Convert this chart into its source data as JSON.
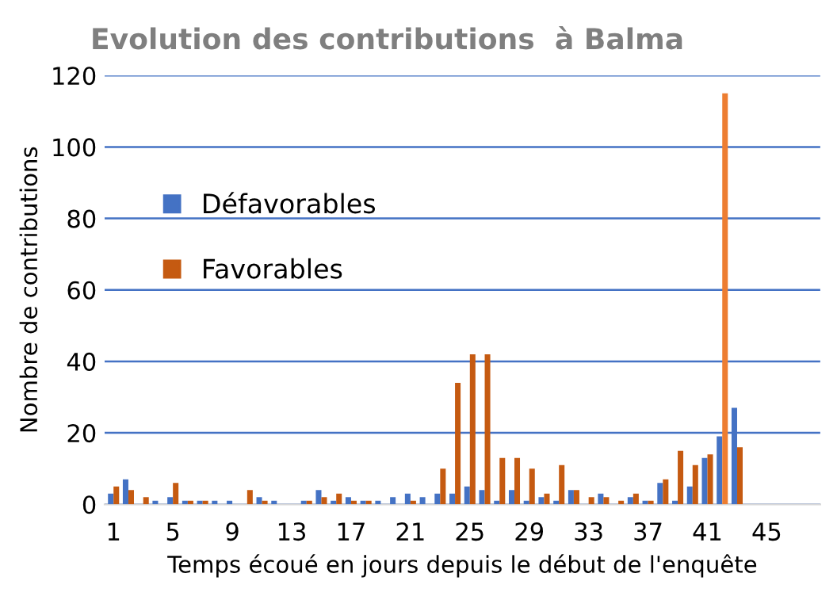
{
  "chart_data": {
    "type": "bar",
    "title": "Evolution des contributions  à Balma",
    "xlabel": "Temps écoué en jours depuis le début de l'enquête",
    "ylabel": "Nombre de contributions",
    "categories": [
      "1",
      null,
      null,
      null,
      "5",
      null,
      null,
      null,
      "9",
      null,
      null,
      null,
      "13",
      null,
      null,
      null,
      "17",
      null,
      null,
      null,
      "21",
      null,
      null,
      null,
      "25",
      null,
      null,
      null,
      "29",
      null,
      null,
      null,
      "33",
      null,
      null,
      null,
      "37",
      null,
      null,
      null,
      "41",
      null,
      null,
      null,
      "45",
      null,
      null,
      null
    ],
    "series": [
      {
        "name": "Défavorables",
        "color": "#4472c4",
        "values": [
          3,
          7,
          0,
          1,
          2,
          1,
          1,
          1,
          1,
          0,
          2,
          1,
          0,
          1,
          4,
          1,
          2,
          1,
          1,
          2,
          3,
          2,
          3,
          3,
          5,
          4,
          1,
          4,
          1,
          2,
          1,
          4,
          0,
          3,
          0,
          2,
          1,
          6,
          1,
          5,
          13,
          19,
          27,
          null,
          null,
          null,
          null,
          null
        ]
      },
      {
        "name": "Favorables",
        "color": "#c55a11",
        "colors": [
          "#c55a11",
          "#c55a11",
          "#c55a11",
          "#c55a11",
          "#c55a11",
          "#c55a11",
          "#c55a11",
          "#c55a11",
          "#c55a11",
          "#c55a11",
          "#c55a11",
          "#c55a11",
          "#c55a11",
          "#c55a11",
          "#c55a11",
          "#c55a11",
          "#c55a11",
          "#c55a11",
          "#c55a11",
          "#c55a11",
          "#c55a11",
          "#c55a11",
          "#c55a11",
          "#c55a11",
          "#c55a11",
          "#c55a11",
          "#c55a11",
          "#c55a11",
          "#c55a11",
          "#c55a11",
          "#c55a11",
          "#c55a11",
          "#c55a11",
          "#c55a11",
          "#c55a11",
          "#c55a11",
          "#c55a11",
          "#c55a11",
          "#c55a11",
          "#c55a11",
          "#c55a11",
          "#ed7d31",
          "#c55a11",
          "#c55a11",
          "#c55a11",
          "#c55a11",
          "#c55a11",
          "#c55a11"
        ],
        "values": [
          5,
          4,
          2,
          0,
          6,
          1,
          1,
          0,
          0,
          4,
          1,
          0,
          0,
          1,
          2,
          3,
          1,
          1,
          0,
          0,
          1,
          0,
          10,
          34,
          42,
          42,
          13,
          13,
          10,
          3,
          11,
          4,
          2,
          2,
          1,
          3,
          1,
          7,
          15,
          11,
          14,
          115,
          16,
          null,
          null,
          null,
          null,
          null
        ]
      }
    ],
    "ylim": [
      0,
      120
    ],
    "yticks": [
      0,
      20,
      40,
      60,
      80,
      100,
      120
    ],
    "grid": "y",
    "legend": "left"
  }
}
